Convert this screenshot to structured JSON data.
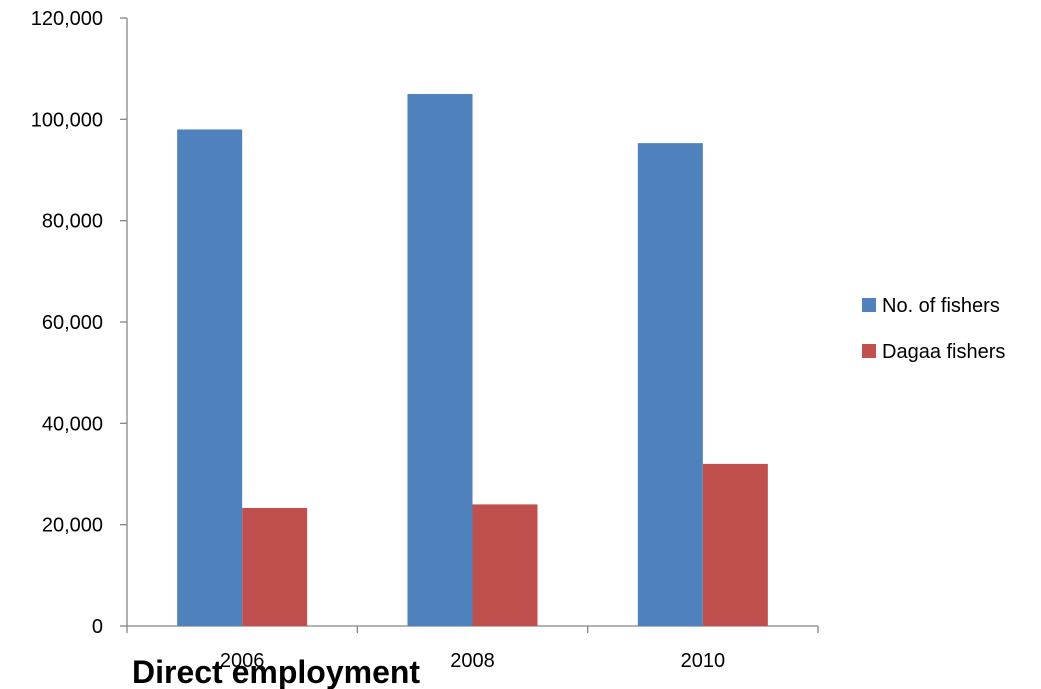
{
  "chart_data": {
    "type": "bar",
    "title": "Direct employment",
    "xlabel": "",
    "ylabel": "",
    "categories": [
      "2006",
      "2008",
      "2010"
    ],
    "series": [
      {
        "name": "No. of fishers",
        "values": [
          98000,
          105000,
          95300
        ],
        "color": "#4f81bd"
      },
      {
        "name": "Dagaa fishers",
        "values": [
          23300,
          24000,
          32000
        ],
        "color": "#c0504d"
      }
    ],
    "ylim": [
      0,
      120000
    ],
    "yticks": [
      0,
      20000,
      40000,
      60000,
      80000,
      100000,
      120000
    ],
    "ytick_labels": [
      "0",
      "20,000",
      "40,000",
      "60,000",
      "80,000",
      "100,000",
      "120,000"
    ],
    "grid": false,
    "legend_position": "right",
    "axis_color": "#868686"
  }
}
